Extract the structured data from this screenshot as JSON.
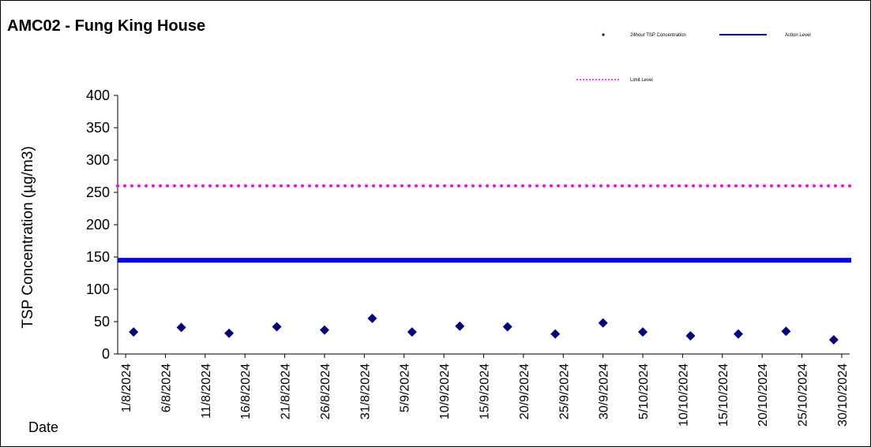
{
  "chart_data": {
    "type": "scatter",
    "title": "AMC02 - Fung King House",
    "xlabel": "Date",
    "ylabel": "TSP Concentration (µg/m3)",
    "ylim": [
      0,
      400
    ],
    "yticks": [
      "0",
      "50",
      "100",
      "150",
      "200",
      "250",
      "300",
      "350",
      "400"
    ],
    "xlim": [
      "2024-07-31",
      "2024-10-31"
    ],
    "x_tick_labels": [
      "1/8/2024",
      "6/8/2024",
      "11/8/2024",
      "16/8/2024",
      "21/8/2024",
      "26/8/2024",
      "31/8/2024",
      "5/9/2024",
      "10/9/2024",
      "15/9/2024",
      "20/9/2024",
      "25/9/2024",
      "30/9/2024",
      "5/10/2024",
      "10/10/2024",
      "15/10/2024",
      "20/10/2024",
      "25/10/2024",
      "30/10/2024"
    ],
    "grid": false,
    "legend_position": "top-right",
    "series": [
      {
        "name": "24hour TSP Concentration",
        "kind": "points",
        "marker": "diamond",
        "color": "#000080",
        "x": [
          "2024-08-02",
          "2024-08-08",
          "2024-08-14",
          "2024-08-20",
          "2024-08-26",
          "2024-09-01",
          "2024-09-06",
          "2024-09-12",
          "2024-09-18",
          "2024-09-24",
          "2024-09-30",
          "2024-10-05",
          "2024-10-11",
          "2024-10-17",
          "2024-10-23",
          "2024-10-29"
        ],
        "y": [
          34,
          41,
          32,
          42,
          37,
          55,
          34,
          43,
          42,
          31,
          48,
          34,
          28,
          31,
          35,
          22
        ]
      },
      {
        "name": "Action Level",
        "kind": "line",
        "style": "solid",
        "color": "#0000ff",
        "value": 145
      },
      {
        "name": "Limit Level",
        "kind": "line",
        "style": "dotted",
        "color": "#ff00ff",
        "value": 260
      }
    ]
  }
}
